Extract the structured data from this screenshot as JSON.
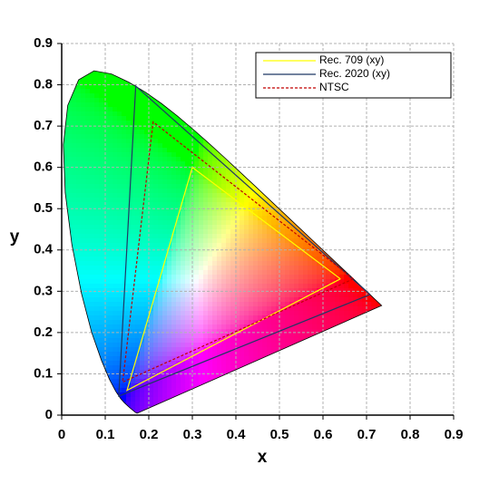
{
  "chart_data": {
    "type": "line",
    "x_label": "x",
    "y_label": "y",
    "xlim": [
      0,
      0.9
    ],
    "ylim": [
      0,
      0.9
    ],
    "xticks": [
      0,
      0.1,
      0.2,
      0.3,
      0.4,
      0.5,
      0.6,
      0.7,
      0.8,
      0.9
    ],
    "yticks": [
      0,
      0.1,
      0.2,
      0.3,
      0.4,
      0.5,
      0.6,
      0.7,
      0.8,
      0.9
    ],
    "grid": true,
    "legend": "upper right",
    "locus": {
      "color": "#000000",
      "x": [
        0.1741,
        0.1733,
        0.1714,
        0.1689,
        0.1644,
        0.1566,
        0.144,
        0.1355,
        0.1241,
        0.1096,
        0.0913,
        0.0687,
        0.0454,
        0.0235,
        0.0082,
        0.0039,
        0.0139,
        0.0389,
        0.0743,
        0.1142,
        0.1547,
        0.1929,
        0.2296,
        0.2658,
        0.3016,
        0.3373,
        0.3731,
        0.4441,
        0.5125,
        0.5752,
        0.627,
        0.6658,
        0.6915,
        0.7079,
        0.719,
        0.726,
        0.7347
      ],
      "y": [
        0.005,
        0.0048,
        0.0051,
        0.0069,
        0.0109,
        0.0177,
        0.0297,
        0.0399,
        0.0578,
        0.0868,
        0.1327,
        0.2007,
        0.295,
        0.4127,
        0.5384,
        0.6548,
        0.7502,
        0.812,
        0.8338,
        0.8262,
        0.8059,
        0.7816,
        0.7543,
        0.7243,
        0.6923,
        0.6589,
        0.6245,
        0.5547,
        0.4866,
        0.4242,
        0.3725,
        0.334,
        0.3083,
        0.292,
        0.2809,
        0.274,
        0.2653
      ]
    },
    "series": [
      {
        "name": "Rec. 709 (xy)",
        "color": "#ffff00",
        "dash": false,
        "x": [
          0.64,
          0.3,
          0.15,
          0.64
        ],
        "y": [
          0.33,
          0.6,
          0.06,
          0.33
        ]
      },
      {
        "name": "Rec. 2020 (xy)",
        "color": "#1f3864",
        "dash": false,
        "x": [
          0.708,
          0.17,
          0.131,
          0.708
        ],
        "y": [
          0.292,
          0.797,
          0.046,
          0.292
        ]
      },
      {
        "name": "NTSC",
        "color": "#c00000",
        "dash": true,
        "x": [
          0.67,
          0.21,
          0.14,
          0.67
        ],
        "y": [
          0.33,
          0.71,
          0.08,
          0.33
        ]
      }
    ]
  }
}
